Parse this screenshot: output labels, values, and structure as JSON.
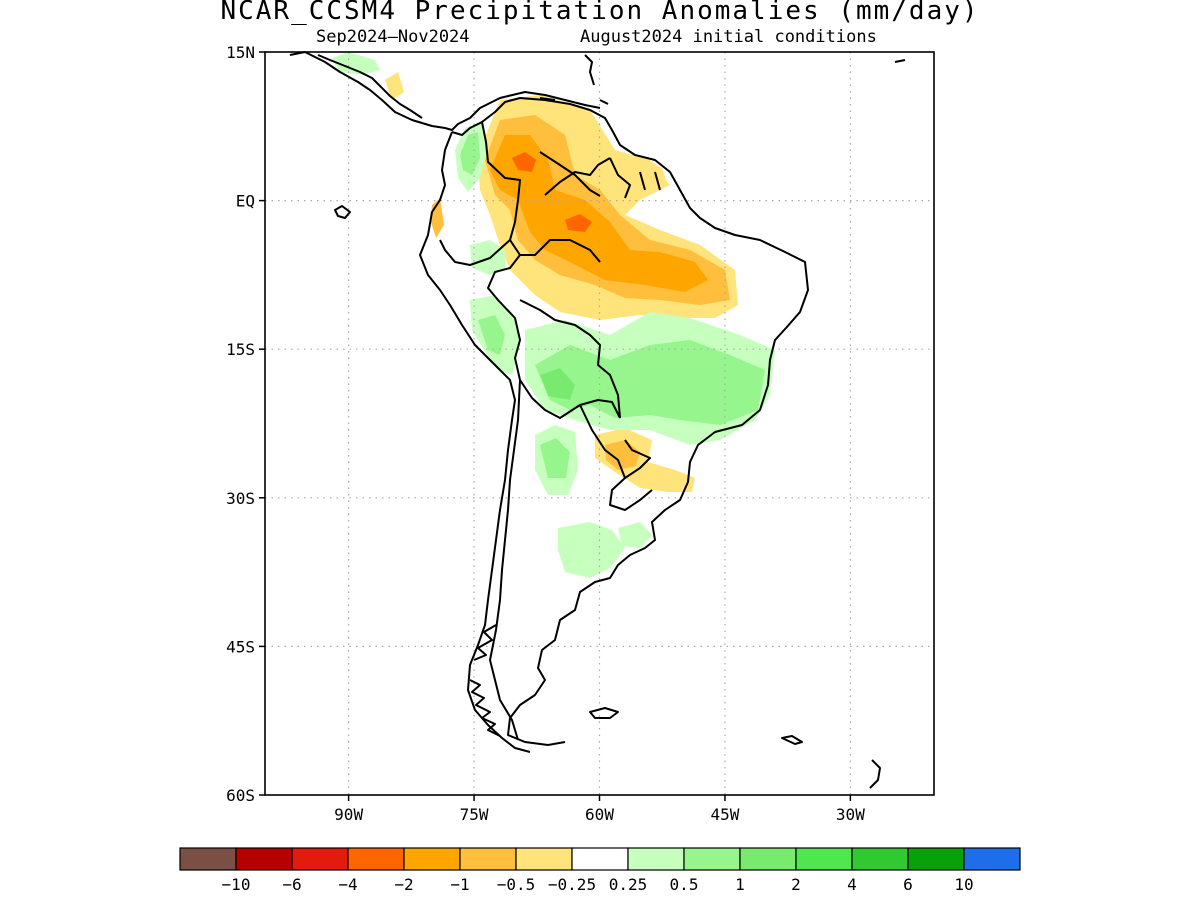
{
  "title": "NCAR_CCSM4 Precipitation Anomalies (mm/day)",
  "subtitle_left": "Sep2024–Nov2024",
  "subtitle_right": "August2024 initial conditions",
  "lat_ticks": [
    {
      "label": "15N",
      "lat": 15
    },
    {
      "label": "EQ",
      "lat": 0
    },
    {
      "label": "15S",
      "lat": -15
    },
    {
      "label": "30S",
      "lat": -30
    },
    {
      "label": "45S",
      "lat": -45
    },
    {
      "label": "60S",
      "lat": -60
    }
  ],
  "lon_ticks": [
    {
      "label": "90W",
      "lon": -90
    },
    {
      "label": "75W",
      "lon": -75
    },
    {
      "label": "60W",
      "lon": -60
    },
    {
      "label": "45W",
      "lon": -45
    },
    {
      "label": "30W",
      "lon": -30
    }
  ],
  "map_extent": {
    "lon_min": -100,
    "lon_max": -20,
    "lat_min": -60,
    "lat_max": 15
  },
  "colorbar": {
    "colors": [
      "#7a5045",
      "#b50000",
      "#e11b0d",
      "#ff6600",
      "#ffa500",
      "#ffbe3c",
      "#ffe37b",
      "#ffffff",
      "#c6ffbe",
      "#96f58c",
      "#78eb6e",
      "#50e650",
      "#32c832",
      "#0aa00a",
      "#1e6eeb"
    ],
    "labels": [
      "−10",
      "−6",
      "−4",
      "−2",
      "−1",
      "−0.5",
      "−0.25",
      "0.25",
      "0.5",
      "1",
      "2",
      "4",
      "6",
      "10"
    ]
  },
  "anomaly_colors": {
    "strong_negative": "#ff6600",
    "negative": "#ffa500",
    "moderate_negative": "#ffbe3c",
    "weak_negative": "#ffe37b",
    "weak_positive": "#c6ffbe",
    "positive": "#96f58c",
    "moderate_positive": "#78eb6e"
  }
}
